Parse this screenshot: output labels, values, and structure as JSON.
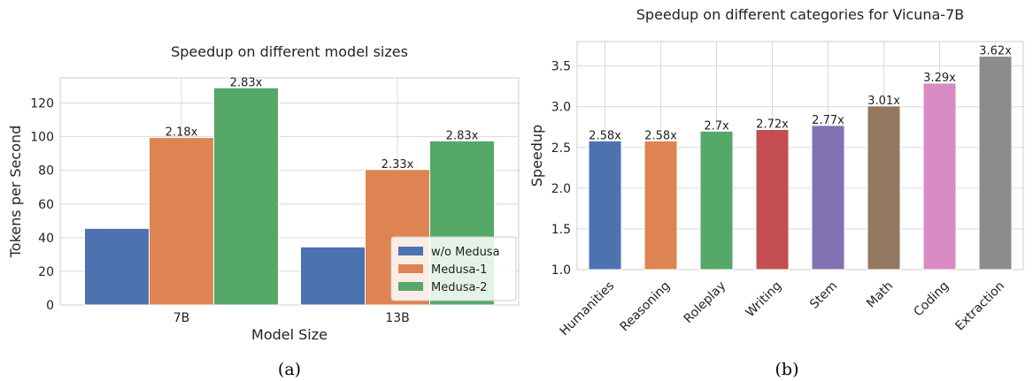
{
  "chart_data": [
    {
      "type": "bar",
      "title": "Speedup on different model sizes",
      "xlabel": "Model Size",
      "ylabel": "Tokens per Second",
      "categories": [
        "7B",
        "13B"
      ],
      "ylim": [
        0,
        135
      ],
      "yticks": [
        0,
        20,
        40,
        60,
        80,
        100,
        120
      ],
      "grid": true,
      "legend_position": "bottom-right",
      "series": [
        {
          "name": "w/o Medusa",
          "values": [
            45.5,
            34.5
          ],
          "labels": [
            "",
            ""
          ],
          "color": "#4c72b0"
        },
        {
          "name": "Medusa-1",
          "values": [
            99.5,
            80.5
          ],
          "labels": [
            "2.18x",
            "2.33x"
          ],
          "color": "#dd8452"
        },
        {
          "name": "Medusa-2",
          "values": [
            129,
            97.5
          ],
          "labels": [
            "2.83x",
            "2.83x"
          ],
          "color": "#55a868"
        }
      ],
      "caption": "(a)"
    },
    {
      "type": "bar",
      "title": "Speedup on different categories for Vicuna-7B",
      "xlabel": "",
      "ylabel": "Speedup",
      "categories": [
        "Humanities",
        "Reasoning",
        "Roleplay",
        "Writing",
        "Stem",
        "Math",
        "Coding",
        "Extraction"
      ],
      "values": [
        2.58,
        2.58,
        2.7,
        2.72,
        2.77,
        3.01,
        3.29,
        3.62
      ],
      "labels": [
        "2.58x",
        "2.58x",
        "2.7x",
        "2.72x",
        "2.77x",
        "3.01x",
        "3.29x",
        "3.62x"
      ],
      "colors": [
        "#4c72b0",
        "#dd8452",
        "#55a868",
        "#c44e52",
        "#8172b3",
        "#937860",
        "#da8bc3",
        "#8c8c8c"
      ],
      "ylim": [
        1.0,
        3.8
      ],
      "yticks": [
        1.0,
        1.5,
        2.0,
        2.5,
        3.0,
        3.5
      ],
      "grid": true,
      "caption": "(b)"
    }
  ]
}
